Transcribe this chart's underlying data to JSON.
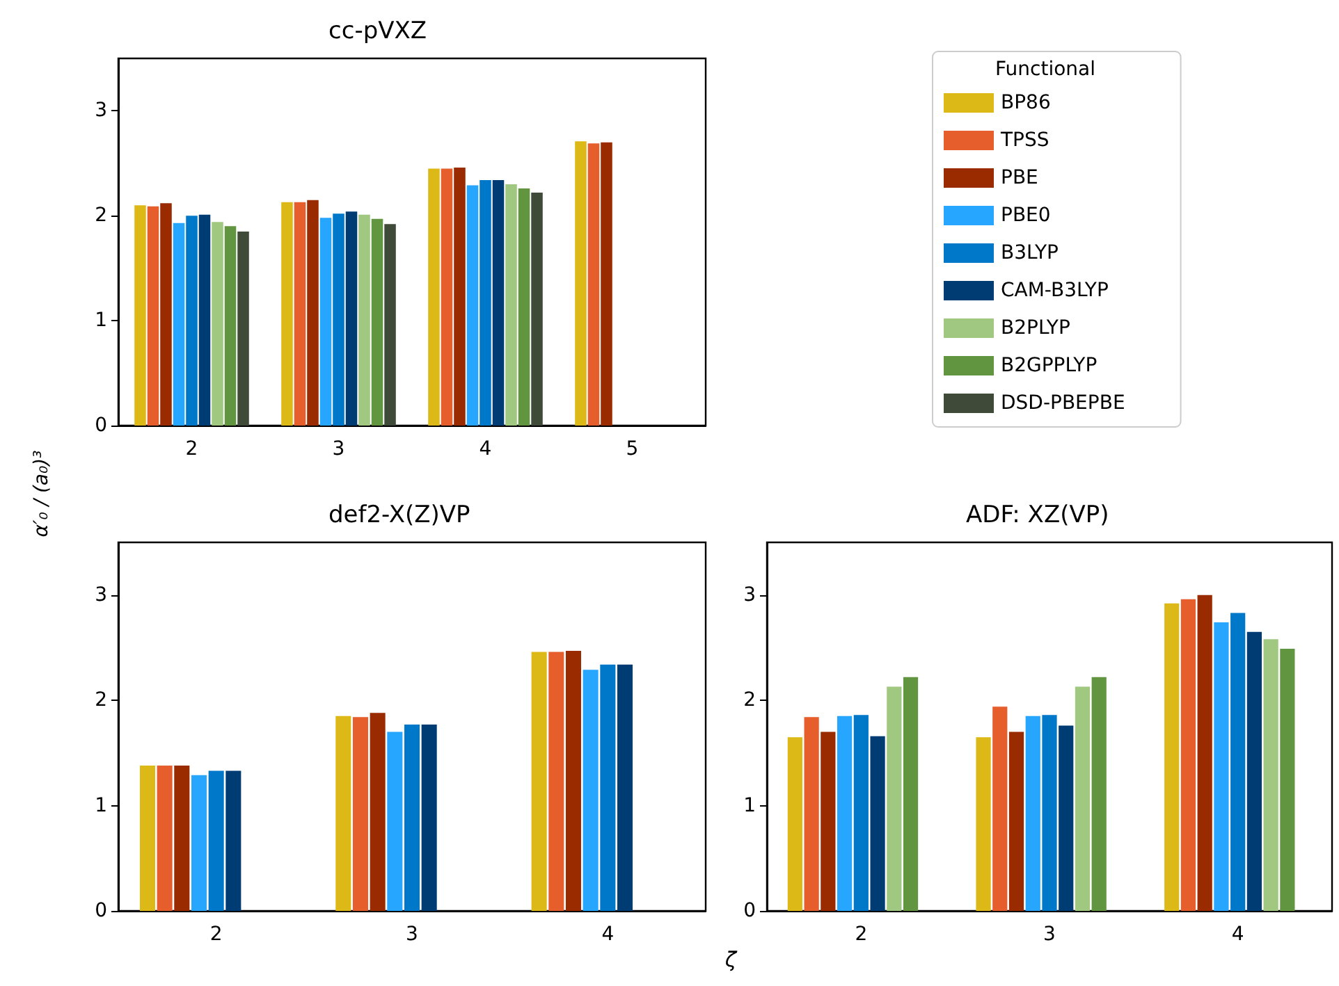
{
  "chart_data": [
    {
      "type": "bar",
      "title": "cc-pVXZ",
      "ylabel": "α′₀ / (a₀)³",
      "legend": "right",
      "legend_title": "Functional",
      "categories": [
        "2",
        "3",
        "4",
        "5"
      ],
      "ylim": [
        0,
        3.5
      ],
      "yticks": [
        0,
        1,
        2,
        3
      ],
      "series": [
        {
          "name": "BP86",
          "color": "#ddb917",
          "values": [
            2.1,
            2.13,
            2.45,
            2.71
          ]
        },
        {
          "name": "TPSS",
          "color": "#e55e2c",
          "values": [
            2.09,
            2.13,
            2.45,
            2.69
          ]
        },
        {
          "name": "PBE",
          "color": "#9a2a00",
          "values": [
            2.12,
            2.15,
            2.46,
            2.7
          ]
        },
        {
          "name": "PBE0",
          "color": "#27a6ff",
          "values": [
            1.93,
            1.98,
            2.29,
            null
          ]
        },
        {
          "name": "B3LYP",
          "color": "#0078ca",
          "values": [
            2.0,
            2.02,
            2.34,
            null
          ]
        },
        {
          "name": "CAM-B3LYP",
          "color": "#003c74",
          "values": [
            2.01,
            2.04,
            2.34,
            null
          ]
        },
        {
          "name": "B2PLYP",
          "color": "#a0c880",
          "values": [
            1.94,
            2.01,
            2.3,
            null
          ]
        },
        {
          "name": "B2GPPLYP",
          "color": "#629540",
          "values": [
            1.9,
            1.97,
            2.26,
            null
          ]
        },
        {
          "name": "DSD-PBEPBE",
          "color": "#3f4b38",
          "values": [
            1.85,
            1.92,
            2.22,
            null
          ]
        }
      ]
    },
    {
      "type": "bar",
      "title": "def2-X(Z)VP",
      "categories": [
        "2",
        "3",
        "4"
      ],
      "ylim": [
        0,
        3.5
      ],
      "yticks": [
        0,
        1,
        2,
        3
      ],
      "series": [
        {
          "color": "#ddb917",
          "values": [
            1.38,
            1.85,
            2.46
          ]
        },
        {
          "color": "#e55e2c",
          "values": [
            1.38,
            1.84,
            2.46
          ]
        },
        {
          "color": "#9a2a00",
          "values": [
            1.38,
            1.88,
            2.47
          ]
        },
        {
          "color": "#27a6ff",
          "values": [
            1.29,
            1.7,
            2.29
          ]
        },
        {
          "color": "#0078ca",
          "values": [
            1.33,
            1.77,
            2.34
          ]
        },
        {
          "color": "#003c74",
          "values": [
            1.33,
            1.77,
            2.34
          ]
        },
        {
          "color": "#a0c880",
          "values": [
            null,
            null,
            null
          ]
        },
        {
          "color": "#629540",
          "values": [
            null,
            null,
            null
          ]
        },
        {
          "color": "#3f4b38",
          "values": [
            null,
            null,
            null
          ]
        }
      ]
    },
    {
      "type": "bar",
      "title": "ADF: XZ(VP)",
      "xlabel": "ζ",
      "categories": [
        "2",
        "3",
        "4"
      ],
      "ylim": [
        0,
        3.5
      ],
      "yticks": [
        0,
        1,
        2,
        3
      ],
      "series": [
        {
          "color": "#ddb917",
          "values": [
            1.65,
            1.65,
            2.92
          ]
        },
        {
          "color": "#e55e2c",
          "values": [
            1.84,
            1.94,
            2.96
          ]
        },
        {
          "color": "#9a2a00",
          "values": [
            1.7,
            1.7,
            3.0
          ]
        },
        {
          "color": "#27a6ff",
          "values": [
            1.85,
            1.85,
            2.74
          ]
        },
        {
          "color": "#0078ca",
          "values": [
            1.86,
            1.86,
            2.83
          ]
        },
        {
          "color": "#003c74",
          "values": [
            1.66,
            1.76,
            2.65
          ]
        },
        {
          "color": "#a0c880",
          "values": [
            2.13,
            2.13,
            2.58
          ]
        },
        {
          "color": "#629540",
          "values": [
            2.22,
            2.22,
            2.49
          ]
        },
        {
          "color": "#3f4b38",
          "values": [
            null,
            null,
            null
          ]
        }
      ]
    }
  ]
}
